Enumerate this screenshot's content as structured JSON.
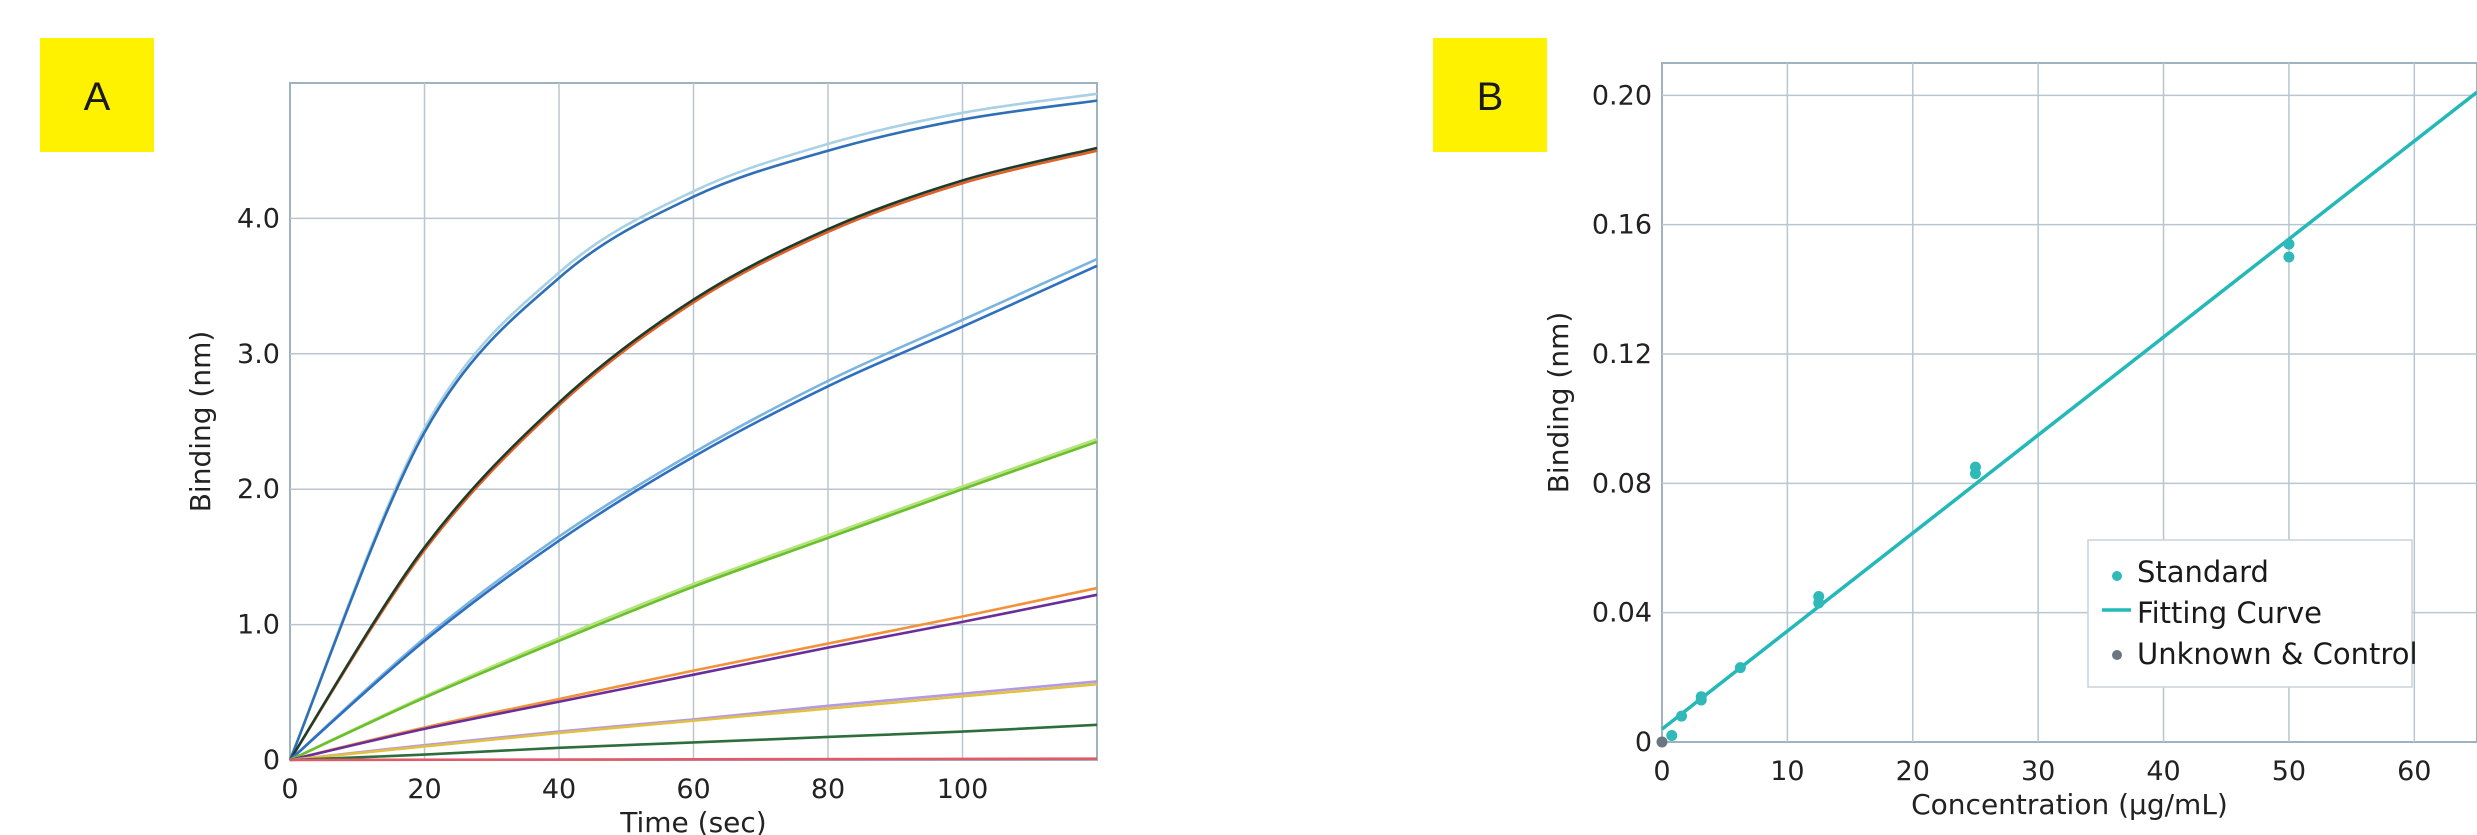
{
  "chart_data": [
    {
      "panel": "A",
      "type": "line",
      "xlabel": "Time (sec)",
      "ylabel": "Binding (nm)",
      "xlim": [
        0,
        120
      ],
      "ylim": [
        0,
        5.0
      ],
      "x_ticks": [
        0,
        20,
        40,
        60,
        80,
        100
      ],
      "x_tick_labels": [
        "0",
        "20",
        "40",
        "60",
        "80",
        "100"
      ],
      "y_ticks": [
        0,
        1.0,
        2.0,
        3.0,
        4.0
      ],
      "y_tick_labels": [
        "0",
        "1.0",
        "2.0",
        "3.0",
        "4.0"
      ],
      "grid": true,
      "series": [
        {
          "color": "#a9d0e4",
          "x": [
            0,
            20,
            40,
            60,
            80,
            100,
            120
          ],
          "y": [
            0,
            2.45,
            3.6,
            4.2,
            4.55,
            4.78,
            4.92
          ]
        },
        {
          "color": "#2e6fb6",
          "x": [
            0,
            20,
            40,
            60,
            80,
            100,
            120
          ],
          "y": [
            0,
            2.42,
            3.56,
            4.16,
            4.5,
            4.73,
            4.87
          ]
        },
        {
          "color": "#e0602a",
          "x": [
            0,
            20,
            40,
            60,
            80,
            100,
            120
          ],
          "y": [
            0,
            1.55,
            2.62,
            3.38,
            3.9,
            4.26,
            4.5
          ]
        },
        {
          "color": "#1d3d2a",
          "x": [
            0,
            20,
            40,
            60,
            80,
            100,
            120
          ],
          "y": [
            0,
            1.57,
            2.64,
            3.4,
            3.92,
            4.28,
            4.52
          ]
        },
        {
          "color": "#7bb4df",
          "x": [
            0,
            20,
            40,
            60,
            80,
            100,
            120
          ],
          "y": [
            0,
            0.9,
            1.65,
            2.27,
            2.8,
            3.25,
            3.7
          ]
        },
        {
          "color": "#2f6fc0",
          "x": [
            0,
            20,
            40,
            60,
            80,
            100,
            120
          ],
          "y": [
            0,
            0.88,
            1.62,
            2.24,
            2.76,
            3.2,
            3.65
          ]
        },
        {
          "color": "#b5e37c",
          "x": [
            0,
            20,
            40,
            60,
            80,
            100,
            120
          ],
          "y": [
            0,
            0.47,
            0.9,
            1.3,
            1.66,
            2.02,
            2.37
          ]
        },
        {
          "color": "#6abf2c",
          "x": [
            0,
            20,
            40,
            60,
            80,
            100,
            120
          ],
          "y": [
            0,
            0.46,
            0.88,
            1.28,
            1.64,
            2.0,
            2.35
          ]
        },
        {
          "color": "#f2923a",
          "x": [
            0,
            20,
            40,
            60,
            80,
            100,
            120
          ],
          "y": [
            0,
            0.24,
            0.45,
            0.66,
            0.86,
            1.06,
            1.27
          ]
        },
        {
          "color": "#6a2e9c",
          "x": [
            0,
            20,
            40,
            60,
            80,
            100,
            120
          ],
          "y": [
            0,
            0.23,
            0.43,
            0.63,
            0.83,
            1.02,
            1.22
          ]
        },
        {
          "color": "#b49ae0",
          "x": [
            0,
            20,
            40,
            60,
            80,
            100,
            120
          ],
          "y": [
            0,
            0.11,
            0.21,
            0.3,
            0.4,
            0.49,
            0.58
          ]
        },
        {
          "color": "#e2c042",
          "x": [
            0,
            20,
            40,
            60,
            80,
            100,
            120
          ],
          "y": [
            0,
            0.1,
            0.2,
            0.29,
            0.38,
            0.47,
            0.56
          ]
        },
        {
          "color": "#2d6e3c",
          "x": [
            0,
            20,
            40,
            60,
            80,
            100,
            120
          ],
          "y": [
            0,
            0.04,
            0.09,
            0.13,
            0.17,
            0.21,
            0.26
          ]
        },
        {
          "color": "#e05a6a",
          "x": [
            0,
            120
          ],
          "y": [
            0,
            0.01
          ]
        }
      ]
    },
    {
      "panel": "B",
      "type": "scatter",
      "xlabel": "Concentration (μg/mL)",
      "ylabel": "Binding (nm)",
      "xlim": [
        0,
        65
      ],
      "ylim": [
        0,
        0.21
      ],
      "x_ticks": [
        0,
        10,
        20,
        30,
        40,
        50,
        60
      ],
      "x_tick_labels": [
        "0",
        "10",
        "20",
        "30",
        "40",
        "50",
        "60"
      ],
      "y_ticks": [
        0,
        0.04,
        0.08,
        0.12,
        0.16,
        0.2
      ],
      "y_tick_labels": [
        "0",
        "0.04",
        "0.08",
        "0.12",
        "0.16",
        "0.20"
      ],
      "grid": true,
      "legend_position": "bottom-right",
      "series": [
        {
          "name": "Standard",
          "marker": "dot",
          "color": "#2fb9b9",
          "x": [
            0.78,
            1.56,
            3.13,
            3.13,
            6.25,
            12.5,
            12.5,
            25,
            25,
            50,
            50
          ],
          "y": [
            0.002,
            0.008,
            0.013,
            0.014,
            0.023,
            0.043,
            0.045,
            0.083,
            0.085,
            0.15,
            0.154
          ]
        },
        {
          "name": "Fitting Curve",
          "marker": "line",
          "color": "#25b8b8",
          "x": [
            0,
            65
          ],
          "y": [
            0.004,
            0.201
          ]
        },
        {
          "name": "Unknown & Control",
          "marker": "dot",
          "color": "#6b7680",
          "x": [
            0
          ],
          "y": [
            0.0
          ]
        }
      ]
    }
  ],
  "colors": {
    "badge": "#fff200",
    "grid": "#b9c6cf",
    "frame": "#9fb2bf"
  }
}
